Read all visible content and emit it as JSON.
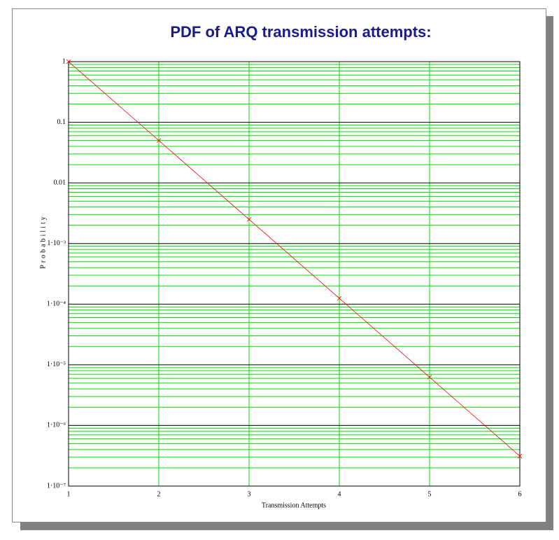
{
  "chart_data": {
    "type": "line",
    "title": "PDF of ARQ transmission attempts:",
    "xlabel": "Transmission Attempts",
    "ylabel": "Probability",
    "x": [
      1,
      2,
      3,
      4,
      5,
      6
    ],
    "series": [
      {
        "color": "#ff0000",
        "values": [
          1,
          0.05,
          0.0025,
          0.000125,
          6.25e-06,
          3.125e-07
        ]
      }
    ],
    "xlim": [
      1,
      6
    ],
    "xticks": [
      1,
      2,
      3,
      4,
      5,
      6
    ],
    "ylim": [
      1e-07,
      1
    ],
    "ylog": true,
    "yticks": [
      1,
      0.1,
      0.01,
      {
        "value": 0.001,
        "label": "1·10⁻³"
      },
      {
        "value": 0.0001,
        "label": "1·10⁻⁴"
      },
      {
        "value": 1e-05,
        "label": "1·10⁻⁵"
      },
      {
        "value": 1e-06,
        "label": "1·10⁻⁶"
      },
      {
        "value": 1e-07,
        "label": "1·10⁻⁷"
      }
    ],
    "grid": true,
    "minor_grid": true,
    "grid_color": "#00dd00",
    "major_grid_color": "#000000"
  }
}
